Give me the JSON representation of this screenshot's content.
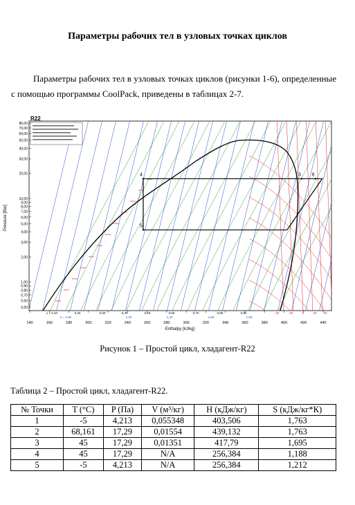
{
  "title": "Параметры рабочих тел в узловых точках циклов",
  "paragraph": "Параметры рабочих тел в узловых точках циклов (рисунки 1-6), определенные с помощью программы CoolPack, приведены в таблицах 2-7.",
  "figure": {
    "label": "R22",
    "ylabel": "Pressure [Bar]",
    "xlabel": "Enthalpy [kJ/kg]",
    "xlim": [
      140,
      440
    ],
    "ylim": [
      0.5,
      80
    ],
    "log_y": true,
    "xticks": [
      140,
      160,
      180,
      200,
      220,
      240,
      260,
      280,
      300,
      320,
      340,
      360,
      380,
      400,
      420,
      440
    ],
    "yticks": [
      {
        "value": 80,
        "label": "80,00"
      },
      {
        "value": 70,
        "label": "70,00"
      },
      {
        "value": 60,
        "label": "60,00"
      },
      {
        "value": 50,
        "label": "50,00"
      },
      {
        "value": 40,
        "label": "40,00"
      },
      {
        "value": 30,
        "label": "30,00"
      },
      {
        "value": 20,
        "label": "20,00"
      },
      {
        "value": 10,
        "label": "10,00"
      },
      {
        "value": 9,
        "label": "9,00"
      },
      {
        "value": 8,
        "label": "8,00"
      },
      {
        "value": 7,
        "label": "7,00"
      },
      {
        "value": 6,
        "label": "6,00"
      },
      {
        "value": 5,
        "label": "5,00"
      },
      {
        "value": 4,
        "label": "4,00"
      },
      {
        "value": 3,
        "label": "3,00"
      },
      {
        "value": 2,
        "label": "2,00"
      },
      {
        "value": 1,
        "label": "1,00"
      },
      {
        "value": 0.9,
        "label": "0,90"
      },
      {
        "value": 0.8,
        "label": "0,80"
      },
      {
        "value": 0.7,
        "label": "0,70"
      },
      {
        "value": 0.6,
        "label": "0,60"
      },
      {
        "value": 0.5,
        "label": "0,50"
      }
    ],
    "quality_labels": [
      "x = 0,10",
      "0,20",
      "0,30",
      "0,40",
      "0,50",
      "0,60",
      "0,70",
      "0,80",
      "0,90"
    ],
    "temperature_labels": [
      "-40",
      "-20",
      "0",
      "20",
      "40"
    ],
    "entropy_labels": [
      "s = 1,00",
      "1,20",
      "1,40",
      "1,60",
      "1,80"
    ],
    "cycle": {
      "h": [
        256,
        403,
        439,
        256,
        256
      ],
      "p": [
        4.213,
        4.213,
        17.29,
        17.29,
        4.213
      ],
      "color": "#000000"
    },
    "points": {
      "labels": [
        "4",
        "5",
        "3",
        "6"
      ],
      "h": [
        256,
        256,
        418,
        432
      ],
      "p": [
        17.29,
        4.213,
        17.29,
        17.29
      ]
    }
  },
  "caption": "Рисунок 1 – Простой цикл, хладагент-R22",
  "table_caption": "Таблица 2 – Простой цикл, хладагент-R22.",
  "table": {
    "header": [
      "№ Точки",
      "T (°C)",
      "P (Па)",
      "V (м³/кг)",
      "H (кДж/кг)",
      "S (кДж/кг*К)"
    ],
    "rows": [
      [
        "1",
        "-5",
        "4,213",
        "0,055348",
        "403,506",
        "1,763"
      ],
      [
        "2",
        "68,161",
        "17,29",
        "0,01554",
        "439,132",
        "1,763"
      ],
      [
        "3",
        "45",
        "17,29",
        "0,01351",
        "417,79",
        "1,695"
      ],
      [
        "4",
        "45",
        "17,29",
        "N/A",
        "256,384",
        "1,188"
      ],
      [
        "5",
        "-5",
        "4,213",
        "N/A",
        "256,384",
        "1,212"
      ]
    ]
  }
}
